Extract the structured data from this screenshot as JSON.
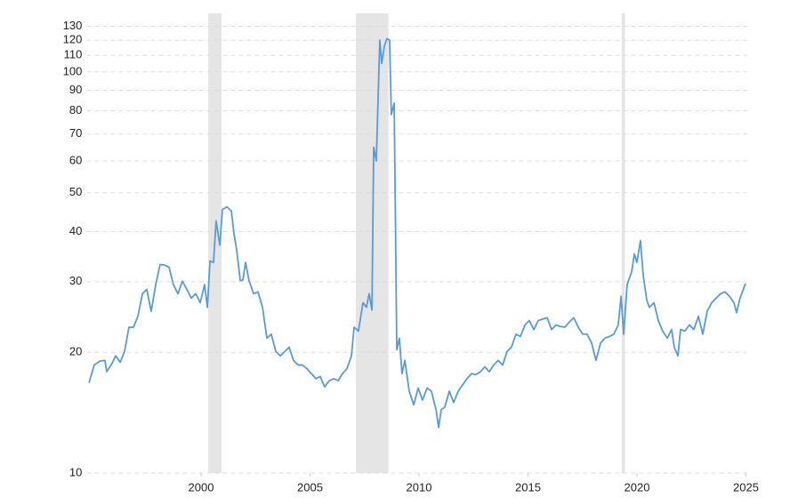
{
  "chart_data": {
    "type": "line",
    "color": "#5b9bd5",
    "log_scale": true,
    "grid": true,
    "xlim": [
      1994.75,
      2025.05
    ],
    "ylim": [
      10,
      140
    ],
    "xticks": [
      2000,
      2005,
      2010,
      2015,
      2020,
      2025
    ],
    "yticks": [
      10,
      20,
      30,
      40,
      50,
      60,
      70,
      80,
      90,
      100,
      110,
      120,
      130
    ],
    "shaded_regions": [
      [
        2000.33,
        2000.94
      ],
      [
        2007.1,
        2008.6
      ],
      [
        2019.3,
        2019.45
      ]
    ],
    "x": [
      1994.86,
      1995.1,
      1995.35,
      1995.59,
      1995.67,
      1995.92,
      1996.08,
      1996.29,
      1996.49,
      1996.69,
      1996.9,
      1997.1,
      1997.31,
      1997.51,
      1997.71,
      1997.92,
      1998.12,
      1998.33,
      1998.53,
      1998.73,
      1998.94,
      1999.14,
      1999.35,
      1999.55,
      1999.76,
      1999.96,
      2000.16,
      2000.29,
      2000.41,
      2000.57,
      2000.69,
      2000.86,
      2000.98,
      2001.18,
      2001.39,
      2001.51,
      2001.63,
      2001.8,
      2001.92,
      2002.04,
      2002.2,
      2002.41,
      2002.61,
      2002.82,
      2003.02,
      2003.22,
      2003.43,
      2003.63,
      2003.84,
      2004.04,
      2004.24,
      2004.45,
      2004.65,
      2004.86,
      2005.06,
      2005.27,
      2005.47,
      2005.67,
      2005.88,
      2006.08,
      2006.29,
      2006.49,
      2006.69,
      2006.9,
      2007.02,
      2007.22,
      2007.43,
      2007.59,
      2007.71,
      2007.84,
      2007.92,
      2008.04,
      2008.2,
      2008.29,
      2008.41,
      2008.53,
      2008.65,
      2008.73,
      2008.86,
      2008.98,
      2009.1,
      2009.22,
      2009.35,
      2009.55,
      2009.76,
      2009.96,
      2010.16,
      2010.37,
      2010.57,
      2010.78,
      2010.9,
      2011.02,
      2011.18,
      2011.39,
      2011.59,
      2011.8,
      2012.0,
      2012.2,
      2012.41,
      2012.61,
      2012.82,
      2013.02,
      2013.22,
      2013.43,
      2013.63,
      2013.84,
      2014.04,
      2014.24,
      2014.45,
      2014.65,
      2014.86,
      2015.06,
      2015.27,
      2015.47,
      2015.67,
      2015.88,
      2016.08,
      2016.29,
      2016.49,
      2016.69,
      2016.9,
      2017.1,
      2017.31,
      2017.51,
      2017.71,
      2017.92,
      2018.12,
      2018.33,
      2018.53,
      2018.73,
      2018.94,
      2019.14,
      2019.27,
      2019.39,
      2019.55,
      2019.76,
      2019.88,
      2020.0,
      2020.16,
      2020.29,
      2020.45,
      2020.57,
      2020.78,
      2020.98,
      2021.18,
      2021.39,
      2021.59,
      2021.71,
      2021.88,
      2022.0,
      2022.2,
      2022.41,
      2022.61,
      2022.82,
      2023.02,
      2023.22,
      2023.43,
      2023.63,
      2023.84,
      2024.04,
      2024.24,
      2024.45,
      2024.57,
      2024.73,
      2024.98
    ],
    "values": [
      16.8,
      18.6,
      19.0,
      19.1,
      17.9,
      18.8,
      19.6,
      18.9,
      20.1,
      23.1,
      23.1,
      24.6,
      28.0,
      28.7,
      25.3,
      29.5,
      33.1,
      33.0,
      32.6,
      29.5,
      28.0,
      30.1,
      28.7,
      27.3,
      28.0,
      26.6,
      29.5,
      25.9,
      33.8,
      33.5,
      42.5,
      37.0,
      45.4,
      46.1,
      45.0,
      39.5,
      36.1,
      30.2,
      30.3,
      33.5,
      30.2,
      28.0,
      28.3,
      25.9,
      21.7,
      22.2,
      20.1,
      19.6,
      20.1,
      20.6,
      19.1,
      18.6,
      18.6,
      18.2,
      17.7,
      17.2,
      17.4,
      16.4,
      17.0,
      17.2,
      17.0,
      17.7,
      18.2,
      19.6,
      23.1,
      22.6,
      26.6,
      25.9,
      28.0,
      25.5,
      64.9,
      60.0,
      120,
      105,
      116,
      121,
      120,
      78.3,
      83.6,
      20.3,
      21.7,
      17.7,
      19.1,
      16.0,
      14.8,
      16.3,
      15.2,
      16.3,
      16.0,
      14.4,
      13.0,
      14.4,
      14.6,
      16.0,
      15.0,
      16.0,
      16.6,
      17.2,
      17.7,
      17.6,
      17.9,
      18.4,
      17.9,
      18.6,
      19.1,
      18.6,
      20.1,
      20.6,
      22.2,
      21.9,
      23.4,
      24.0,
      22.8,
      24.0,
      24.2,
      24.4,
      22.8,
      23.4,
      23.2,
      23.1,
      23.8,
      24.4,
      23.1,
      22.2,
      22.2,
      21.1,
      19.1,
      21.1,
      21.7,
      21.9,
      22.2,
      23.4,
      27.6,
      22.2,
      29.5,
      31.8,
      35.2,
      33.5,
      38.0,
      31.0,
      27.0,
      25.9,
      26.6,
      24.0,
      22.6,
      21.7,
      22.8,
      20.6,
      19.6,
      22.8,
      22.6,
      23.4,
      22.8,
      24.6,
      22.2,
      25.3,
      26.6,
      27.3,
      28.0,
      28.3,
      27.6,
      26.6,
      25.1,
      27.3,
      29.7
    ]
  }
}
